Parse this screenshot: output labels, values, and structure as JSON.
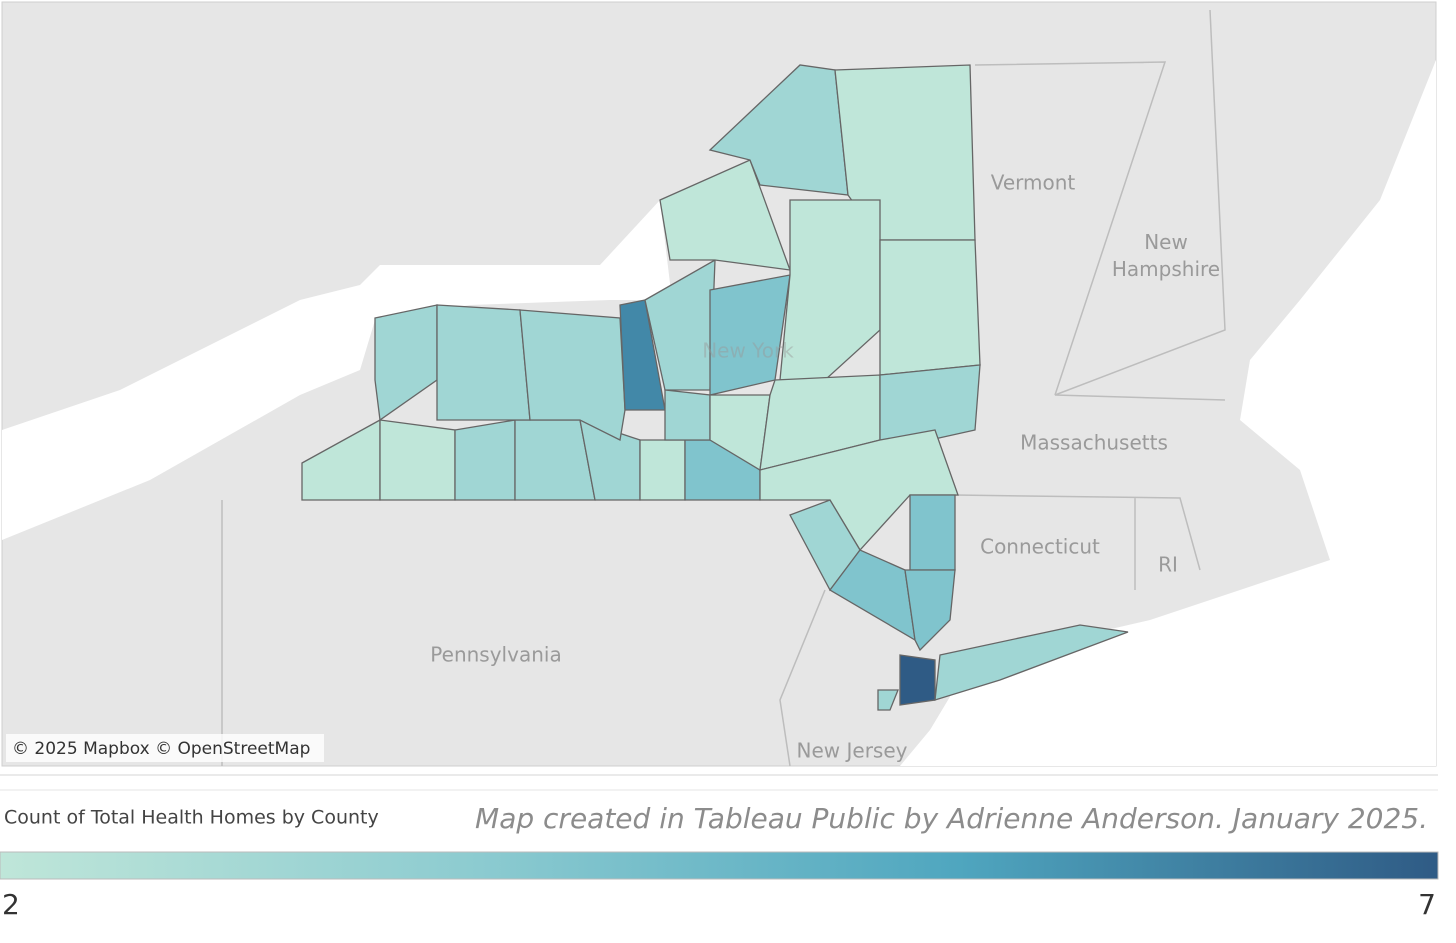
{
  "place_labels": [
    "Vermont",
    "New Hampshire",
    "Massachusetts",
    "Connecticut",
    "RI",
    "Pennsylvania",
    "New Jersey",
    "New York"
  ],
  "attribution": "© 2025 Mapbox © OpenStreetMap",
  "note": "Map created in Tableau Public by Adrienne Anderson. January 2025.",
  "legend": {
    "title": "Count of Total Health Homes by County",
    "min": 2,
    "max": 7,
    "colors": [
      "#bfe6d9",
      "#8ccbd0",
      "#4fa6bf",
      "#2f5b85"
    ]
  },
  "county_values": [
    2,
    2,
    3,
    3,
    3,
    2,
    4,
    3,
    3,
    3,
    6,
    3,
    4,
    3,
    2,
    2,
    3,
    2,
    2,
    2,
    2,
    3,
    2,
    3,
    4,
    4,
    4,
    3,
    7,
    3
  ]
}
